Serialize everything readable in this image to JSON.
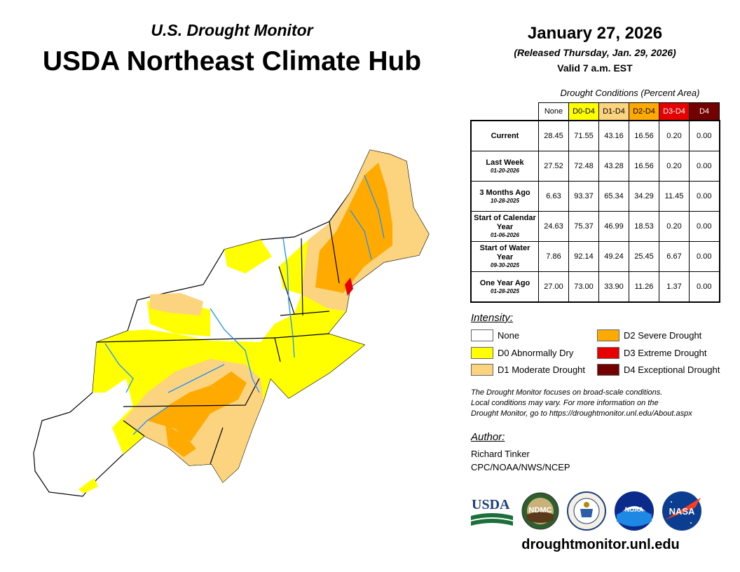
{
  "header": {
    "subtitle": "U.S. Drought Monitor",
    "title": "USDA Northeast Climate Hub",
    "date": "January 27, 2026",
    "released": "(Released Thursday, Jan. 29, 2026)",
    "valid": "Valid 7 a.m. EST"
  },
  "conditions": {
    "caption": "Drought Conditions (Percent Area)",
    "columns": [
      {
        "label": "None",
        "color": "#ffffff",
        "text_color": "#000000"
      },
      {
        "label": "D0-D4",
        "color": "#ffff00",
        "text_color": "#000000"
      },
      {
        "label": "D1-D4",
        "color": "#fcd37f",
        "text_color": "#000000"
      },
      {
        "label": "D2-D4",
        "color": "#ffaa00",
        "text_color": "#000000"
      },
      {
        "label": "D3-D4",
        "color": "#e60000",
        "text_color": "#ffffff"
      },
      {
        "label": "D4",
        "color": "#730000",
        "text_color": "#ffffff"
      }
    ],
    "rows": [
      {
        "label": "Current",
        "date": "",
        "values": [
          "28.45",
          "71.55",
          "43.16",
          "16.56",
          "0.20",
          "0.00"
        ]
      },
      {
        "label": "Last Week",
        "date": "01-20-2026",
        "values": [
          "27.52",
          "72.48",
          "43.28",
          "16.56",
          "0.20",
          "0.00"
        ]
      },
      {
        "label": "3 Months Ago",
        "date": "10-28-2025",
        "values": [
          "6.63",
          "93.37",
          "65.34",
          "34.29",
          "11.45",
          "0.00"
        ]
      },
      {
        "label": "Start of Calendar Year",
        "date": "01-06-2026",
        "values": [
          "24.63",
          "75.37",
          "46.99",
          "18.53",
          "0.20",
          "0.00"
        ]
      },
      {
        "label": "Start of Water Year",
        "date": "09-30-2025",
        "values": [
          "7.86",
          "92.14",
          "49.24",
          "25.45",
          "6.67",
          "0.00"
        ]
      },
      {
        "label": "One Year Ago",
        "date": "01-28-2025",
        "values": [
          "27.00",
          "73.00",
          "33.90",
          "11.26",
          "1.37",
          "0.00"
        ]
      }
    ]
  },
  "legend": {
    "heading": "Intensity:",
    "items": [
      {
        "label": "None",
        "color": "#ffffff"
      },
      {
        "label": "D0 Abnormally Dry",
        "color": "#ffff00"
      },
      {
        "label": "D1 Moderate Drought",
        "color": "#fcd37f"
      },
      {
        "label": "D2 Severe Drought",
        "color": "#ffaa00"
      },
      {
        "label": "D3 Extreme Drought",
        "color": "#e60000"
      },
      {
        "label": "D4 Exceptional Drought",
        "color": "#730000"
      }
    ]
  },
  "note": {
    "line1": "The Drought Monitor focuses on broad-scale conditions.",
    "line2": "Local conditions may vary. For more information on the",
    "line3": "Drought Monitor, go to https://droughtmonitor.unl.edu/About.aspx"
  },
  "author": {
    "heading": "Author:",
    "name": "Richard Tinker",
    "org": "CPC/NOAA/NWS/NCEP"
  },
  "logos": {
    "usda": "USDA",
    "ndmc": "NDMC",
    "noaa": "NOAA",
    "nasa": "NASA"
  },
  "footer": {
    "url": "droughtmonitor.unl.edu"
  }
}
